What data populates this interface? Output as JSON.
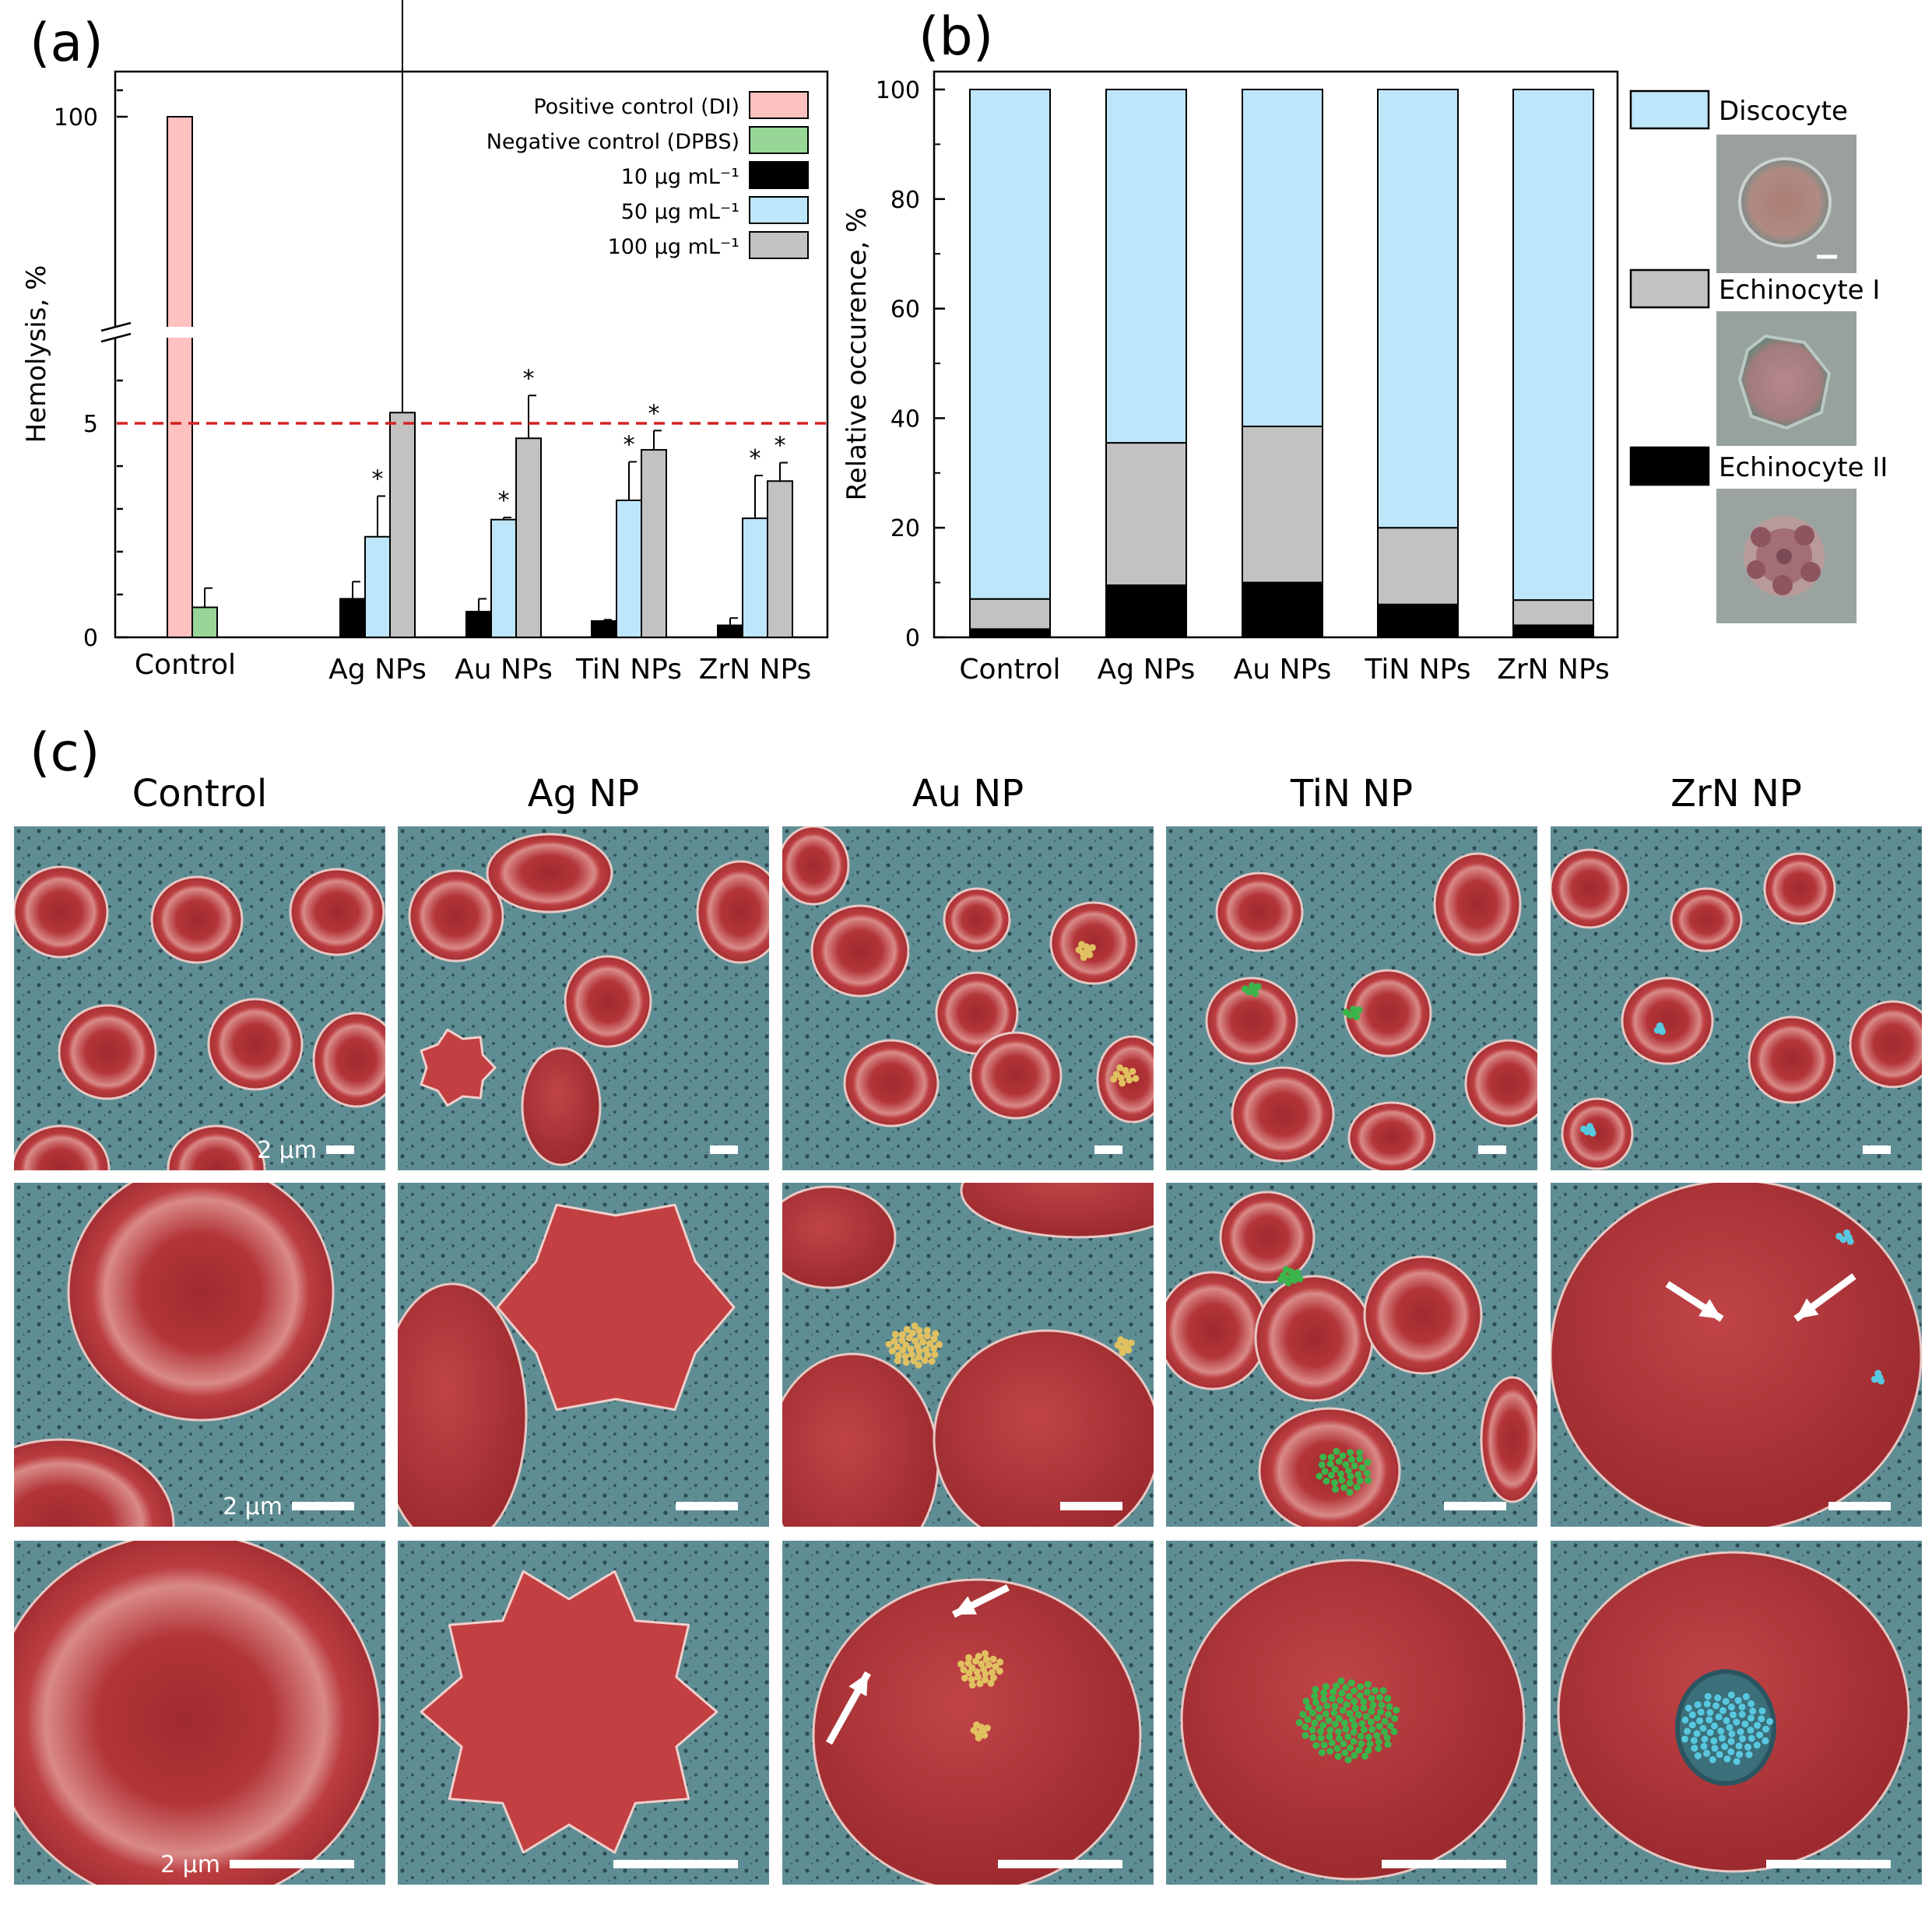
{
  "panel_labels": {
    "a": "(a)",
    "b": "(b)",
    "c": "(c)"
  },
  "chart_data": [
    {
      "type": "bar",
      "panel": "(a)",
      "ylabel": "Hemolysis, %",
      "yticks": [
        "0",
        "5",
        "100"
      ],
      "axis_break": true,
      "threshold_line": 5,
      "significance_marker": "*",
      "control": {
        "category": "Control",
        "series": [
          {
            "name": "Positive control (DI)",
            "value": 100,
            "color": "#ffc0c0"
          },
          {
            "name": "Negative control (DPBS)",
            "value": 0.7,
            "error": 0.45,
            "color": "#97d696"
          }
        ]
      },
      "categories": [
        "Ag NPs",
        "Au NPs",
        "TiN NPs",
        "ZrN NPs"
      ],
      "series": [
        {
          "name": "10 μg mL⁻¹",
          "values": [
            0.9,
            0.6,
            0.38,
            0.28
          ],
          "errors": [
            0.4,
            0.3,
            0.03,
            0.17
          ],
          "significant": [
            false,
            false,
            false,
            false
          ],
          "color": "#000000"
        },
        {
          "name": "50 μg mL⁻¹",
          "values": [
            2.35,
            2.75,
            3.2,
            2.78
          ],
          "errors": [
            0.95,
            0.05,
            0.9,
            1.0
          ],
          "significant": [
            true,
            true,
            true,
            true
          ],
          "color": "#bde6fb"
        },
        {
          "name": "100 μg mL⁻¹",
          "values": [
            5.25,
            4.65,
            4.38,
            3.65
          ],
          "errors": [
            1.0,
            1.0,
            0.45,
            0.43
          ],
          "significant": [
            true,
            true,
            true,
            true
          ],
          "color": "#c2c2c2"
        }
      ],
      "legend_position": "top-right"
    },
    {
      "type": "bar",
      "stacked": true,
      "panel": "(b)",
      "ylabel": "Relative occurence, %",
      "ylim": [
        0,
        100
      ],
      "yticks": [
        0,
        20,
        40,
        60,
        80,
        100
      ],
      "categories": [
        "Control",
        "Ag NPs",
        "Au NPs",
        "TiN NPs",
        "ZrN NPs"
      ],
      "series": [
        {
          "name": "Echinocyte II",
          "values": [
            1.5,
            9.5,
            10,
            6,
            2.2
          ],
          "color": "#000000"
        },
        {
          "name": "Echinocyte I",
          "values": [
            5.5,
            26,
            28.5,
            14,
            4.6
          ],
          "color": "#c2c2c2"
        },
        {
          "name": "Discocyte",
          "values": [
            93,
            64.5,
            61.5,
            80,
            93.2
          ],
          "color": "#bde6fb"
        }
      ],
      "legend_order": [
        "Discocyte",
        "Echinocyte I",
        "Echinocyte II"
      ],
      "legend_position": "right"
    }
  ],
  "micrographs": {
    "column_titles": [
      "Control",
      "Ag NP",
      "Au NP",
      "TiN NP",
      "ZrN NP"
    ],
    "scale_label": "2 μm",
    "colors": {
      "background": "#5f8d94",
      "cell": "#b83a3c",
      "au_particles": "#e0c060",
      "tin_particles": "#3bb54a",
      "zrn_particles": "#58c8e0"
    }
  }
}
